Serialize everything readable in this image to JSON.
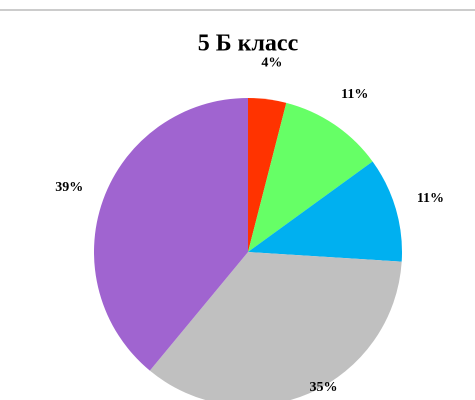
{
  "chart_data": {
    "type": "pie",
    "title": "5 Б класс",
    "values": [
      4,
      11,
      11,
      35,
      39
    ],
    "value_labels": [
      "4%",
      "11%",
      "11%",
      "35%",
      "39%"
    ],
    "colors": [
      "#ff3300",
      "#66ff66",
      "#00b0f0",
      "#c0c0c0",
      "#a064d0"
    ]
  }
}
